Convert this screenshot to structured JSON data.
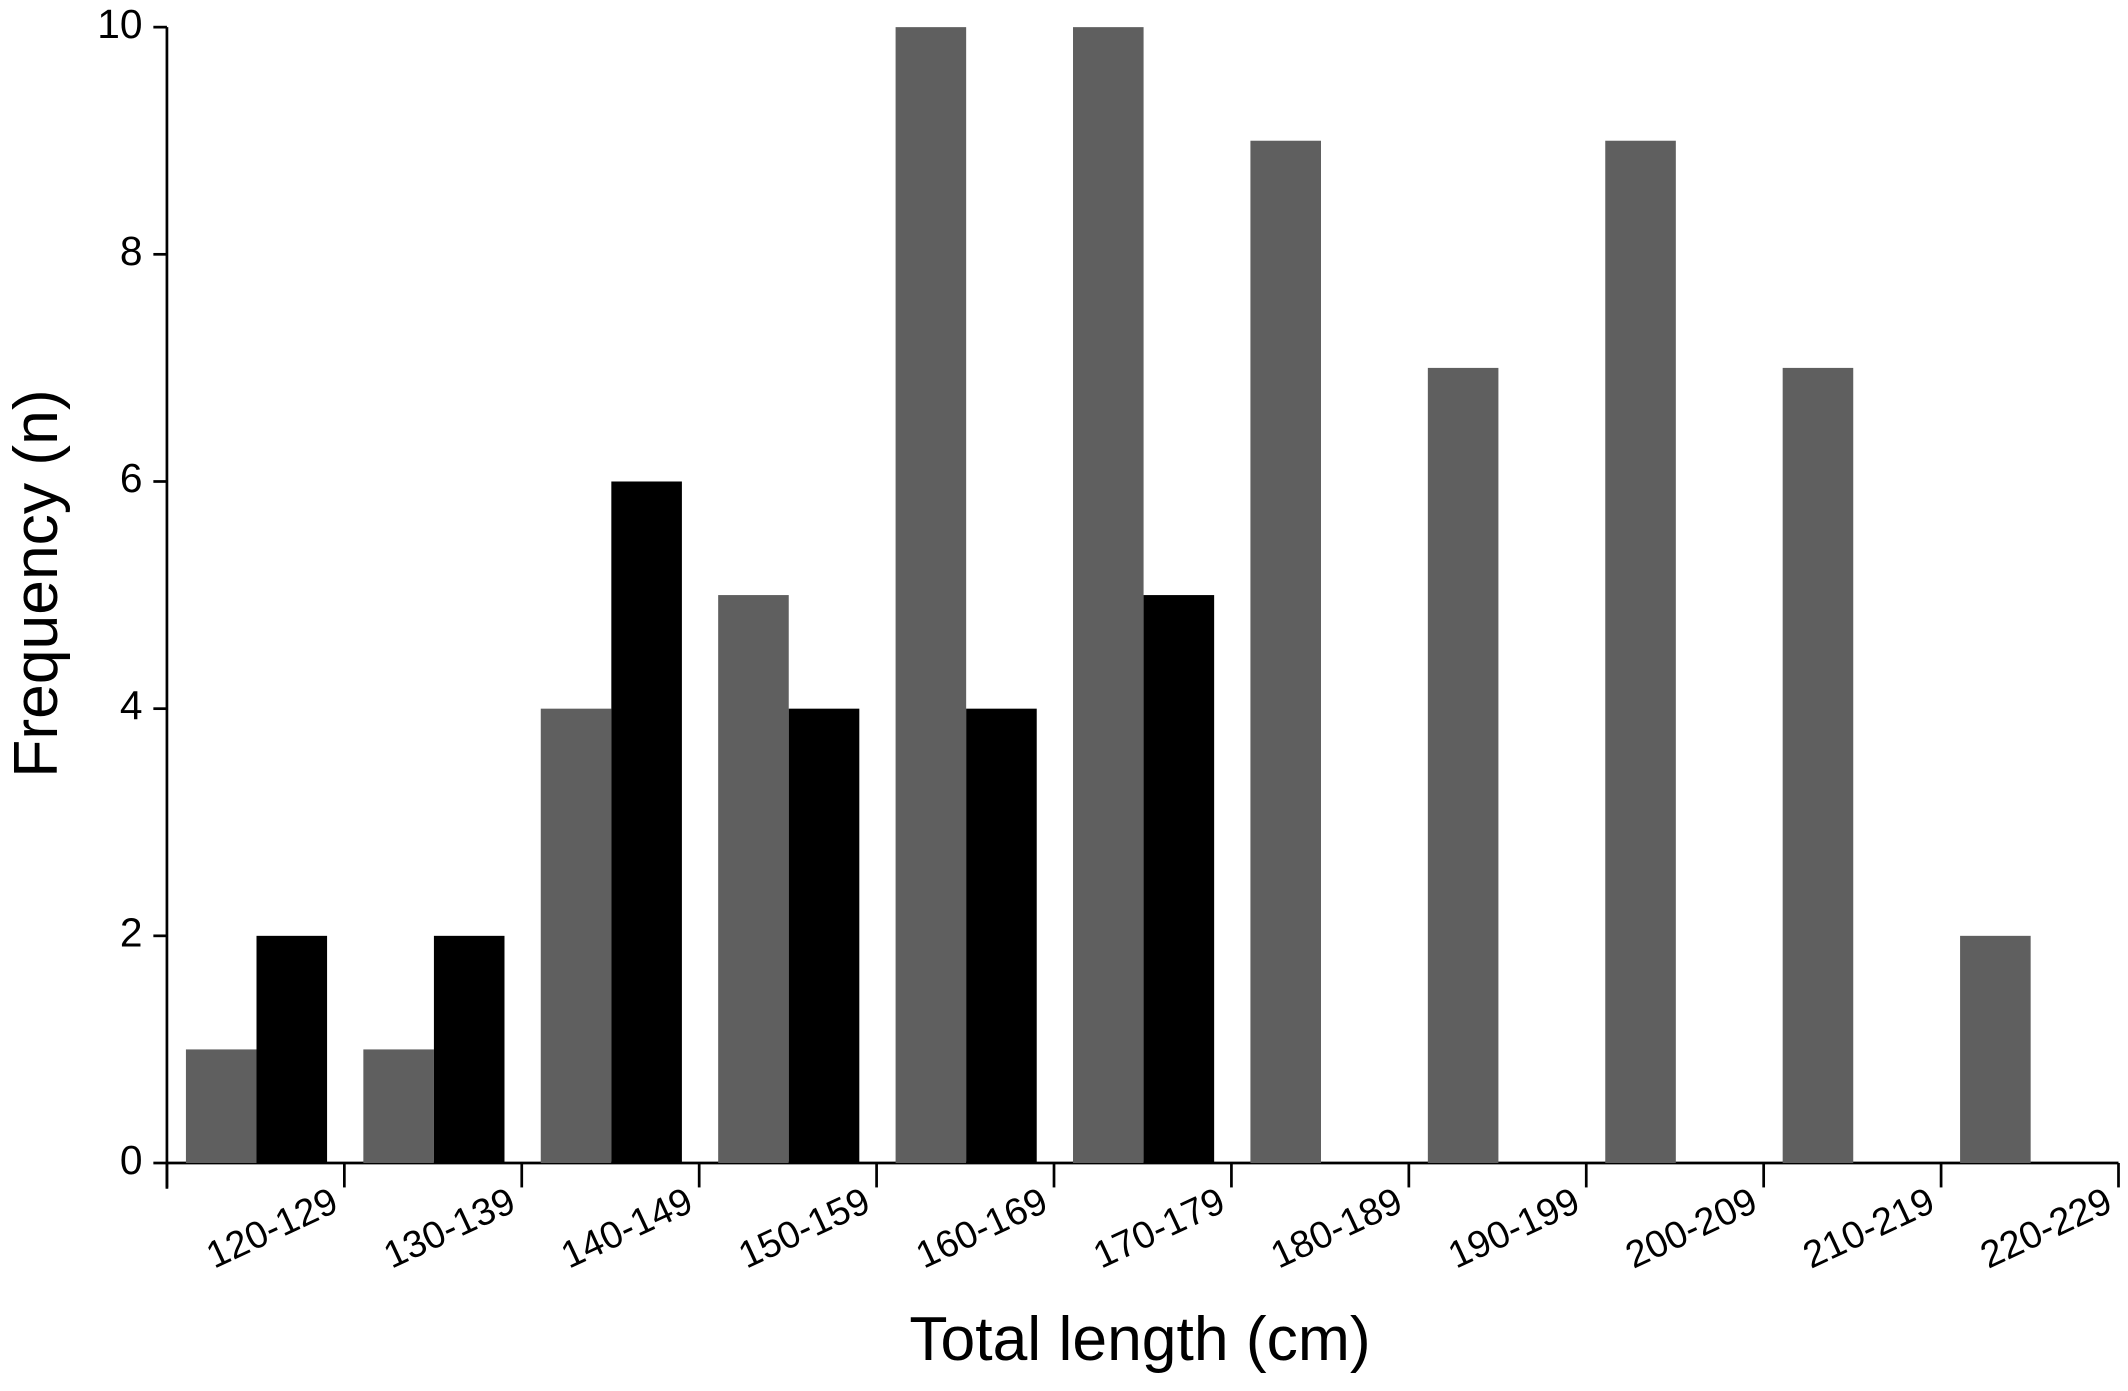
{
  "chart_data": {
    "type": "bar",
    "x_label": "Total length (cm)",
    "y_label": "Frequency (n)",
    "categories": [
      "120-129",
      "130-139",
      "140-149",
      "150-159",
      "160-169",
      "170-179",
      "180-189",
      "190-199",
      "200-209",
      "210-219",
      "220-229"
    ],
    "series": [
      {
        "color": "#5f5f5f",
        "values": [
          1,
          1,
          4,
          5,
          10,
          10,
          9,
          7,
          9,
          7,
          2
        ]
      },
      {
        "color": "#000000",
        "values": [
          2,
          2,
          6,
          4,
          4,
          5,
          0,
          0,
          0,
          0,
          0
        ]
      }
    ],
    "ylim": [
      0,
      10
    ],
    "yticks": [
      0,
      2,
      4,
      6,
      8,
      10
    ],
    "grid": false
  }
}
